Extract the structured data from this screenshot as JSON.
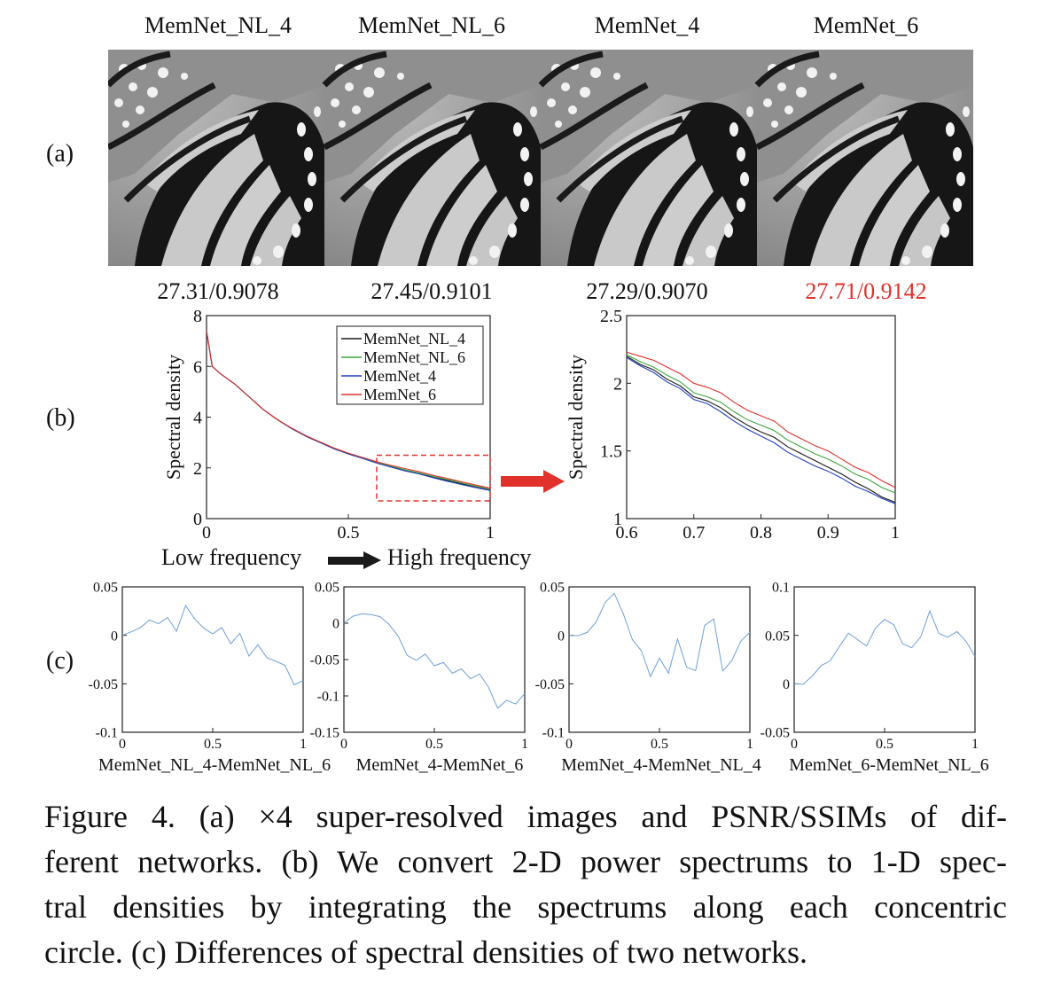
{
  "panel_labels": {
    "a": "(a)",
    "b": "(b)",
    "c": "(c)"
  },
  "row_a": {
    "columns": [
      {
        "title": "MemNet_NL_4",
        "score": "27.31/0.9078",
        "highlight": false
      },
      {
        "title": "MemNet_NL_6",
        "score": "27.45/0.9101",
        "highlight": false
      },
      {
        "title": "MemNet_4",
        "score": "27.29/0.9070",
        "highlight": false
      },
      {
        "title": "MemNet_6",
        "score": "27.71/0.9142",
        "highlight": true
      }
    ],
    "highlight_color": "#e0312b"
  },
  "row_b": {
    "freq_low": "Low frequency",
    "freq_high": "High frequency"
  },
  "row_c": {
    "xlabels": [
      "MemNet_NL_4-MemNet_NL_6",
      "MemNet_4-MemNet_6",
      "MemNet_4-MemNet_NL_4",
      "MemNet_6-MemNet_NL_6"
    ]
  },
  "caption": {
    "lines": [
      "Figure 4. (a) ×4 super-resolved images and PSNR/SSIMs of dif-",
      "ferent networks. (b) We convert 2-D power spectrums to 1-D spec-",
      "tral densities by integrating the spectrums along each concentric",
      "circle. (c) Differences of spectral densities of two networks."
    ]
  },
  "chart_data": [
    {
      "type": "line",
      "ylabel": "Spectral density",
      "xlim": [
        0,
        1
      ],
      "ylim": [
        0,
        8
      ],
      "xticks": [
        0,
        0.5,
        1
      ],
      "yticks": [
        0,
        2,
        4,
        6,
        8
      ],
      "legend_placement": "top-right",
      "x": [
        0,
        0.02,
        0.05,
        0.1,
        0.15,
        0.2,
        0.25,
        0.3,
        0.35,
        0.4,
        0.45,
        0.5,
        0.55,
        0.6,
        0.65,
        0.7,
        0.75,
        0.8,
        0.85,
        0.9,
        0.95,
        1.0
      ],
      "series": [
        {
          "name": "MemNet_NL_4",
          "color": "#1a1a1a",
          "values": [
            7.4,
            6.0,
            5.7,
            5.3,
            4.8,
            4.3,
            3.9,
            3.55,
            3.25,
            3.0,
            2.75,
            2.55,
            2.38,
            2.2,
            2.05,
            1.9,
            1.78,
            1.63,
            1.5,
            1.37,
            1.24,
            1.13
          ]
        },
        {
          "name": "MemNet_NL_6",
          "color": "#3aa83a",
          "values": [
            7.4,
            6.0,
            5.7,
            5.3,
            4.8,
            4.3,
            3.9,
            3.56,
            3.26,
            3.01,
            2.76,
            2.56,
            2.39,
            2.21,
            2.07,
            1.92,
            1.8,
            1.66,
            1.54,
            1.41,
            1.28,
            1.18
          ]
        },
        {
          "name": "MemNet_4",
          "color": "#1f3fbf",
          "values": [
            7.4,
            6.0,
            5.7,
            5.3,
            4.8,
            4.3,
            3.9,
            3.55,
            3.25,
            3.0,
            2.75,
            2.55,
            2.37,
            2.19,
            2.03,
            1.88,
            1.76,
            1.61,
            1.47,
            1.34,
            1.22,
            1.11
          ]
        },
        {
          "name": "MemNet_6",
          "color": "#e0312b",
          "values": [
            7.4,
            6.0,
            5.7,
            5.3,
            4.8,
            4.3,
            3.9,
            3.57,
            3.27,
            3.02,
            2.78,
            2.58,
            2.41,
            2.24,
            2.1,
            1.97,
            1.85,
            1.7,
            1.58,
            1.45,
            1.32,
            1.2
          ]
        }
      ],
      "zoom_box": {
        "x": [
          0.6,
          1.0
        ],
        "y": [
          0.7,
          2.5
        ]
      }
    },
    {
      "type": "line",
      "ylabel": "Spectral density",
      "xlim": [
        0.6,
        1
      ],
      "ylim": [
        1,
        2.5
      ],
      "xticks": [
        0.6,
        0.7,
        0.8,
        0.9,
        1
      ],
      "yticks": [
        1,
        1.5,
        2,
        2.5
      ],
      "x": [
        0.6,
        0.62,
        0.64,
        0.66,
        0.68,
        0.7,
        0.72,
        0.74,
        0.76,
        0.78,
        0.8,
        0.82,
        0.84,
        0.86,
        0.88,
        0.9,
        0.92,
        0.94,
        0.96,
        0.98,
        1.0
      ],
      "series": [
        {
          "name": "MemNet_NL_4",
          "color": "#1a1a1a",
          "values": [
            2.2,
            2.14,
            2.1,
            2.03,
            1.98,
            1.9,
            1.87,
            1.82,
            1.75,
            1.69,
            1.64,
            1.6,
            1.53,
            1.48,
            1.43,
            1.38,
            1.33,
            1.27,
            1.22,
            1.16,
            1.12
          ]
        },
        {
          "name": "MemNet_NL_6",
          "color": "#3aa83a",
          "values": [
            2.21,
            2.16,
            2.12,
            2.06,
            2.01,
            1.93,
            1.9,
            1.86,
            1.79,
            1.73,
            1.69,
            1.65,
            1.58,
            1.53,
            1.48,
            1.44,
            1.39,
            1.33,
            1.29,
            1.23,
            1.19
          ]
        },
        {
          "name": "MemNet_4",
          "color": "#1f3fbf",
          "values": [
            2.19,
            2.13,
            2.08,
            2.01,
            1.96,
            1.88,
            1.85,
            1.79,
            1.72,
            1.66,
            1.61,
            1.56,
            1.49,
            1.44,
            1.39,
            1.35,
            1.3,
            1.24,
            1.2,
            1.15,
            1.11
          ]
        },
        {
          "name": "MemNet_6",
          "color": "#e0312b",
          "values": [
            2.23,
            2.2,
            2.17,
            2.12,
            2.07,
            2.0,
            1.97,
            1.93,
            1.86,
            1.8,
            1.76,
            1.72,
            1.64,
            1.59,
            1.54,
            1.5,
            1.44,
            1.38,
            1.34,
            1.28,
            1.23
          ]
        }
      ]
    },
    {
      "type": "line",
      "ylim": [
        -0.1,
        0.05
      ],
      "xlim": [
        0,
        1
      ],
      "yticks": [
        -0.1,
        -0.05,
        0,
        0.05
      ],
      "xticks": [
        0,
        0.5,
        1
      ],
      "x": [
        0,
        0.05,
        0.1,
        0.15,
        0.2,
        0.25,
        0.3,
        0.35,
        0.4,
        0.45,
        0.5,
        0.55,
        0.6,
        0.65,
        0.7,
        0.75,
        0.8,
        0.85,
        0.9,
        0.95,
        1.0
      ],
      "series": [
        {
          "color": "#6f9fd8",
          "values": [
            0.0,
            0.002,
            0.005,
            0.012,
            0.008,
            0.015,
            0.002,
            0.03,
            0.018,
            0.01,
            0.005,
            0.012,
            -0.005,
            0.005,
            -0.02,
            -0.01,
            -0.025,
            -0.03,
            -0.035,
            -0.055,
            -0.05
          ]
        }
      ]
    },
    {
      "type": "line",
      "ylim": [
        -0.15,
        0.05
      ],
      "xlim": [
        0,
        1
      ],
      "yticks": [
        -0.15,
        -0.1,
        -0.05,
        0,
        0.05
      ],
      "xticks": [
        0,
        0.5,
        1
      ],
      "x": [
        0,
        0.05,
        0.1,
        0.15,
        0.2,
        0.25,
        0.3,
        0.35,
        0.4,
        0.45,
        0.5,
        0.55,
        0.6,
        0.65,
        0.7,
        0.75,
        0.8,
        0.85,
        0.9,
        0.95,
        1.0
      ],
      "series": [
        {
          "color": "#6f9fd8",
          "values": [
            0.0,
            0.008,
            0.01,
            0.008,
            0.005,
            -0.005,
            -0.02,
            -0.045,
            -0.05,
            -0.04,
            -0.055,
            -0.05,
            -0.065,
            -0.06,
            -0.075,
            -0.07,
            -0.09,
            -0.12,
            -0.11,
            -0.115,
            -0.1
          ]
        }
      ]
    },
    {
      "type": "line",
      "ylim": [
        -0.1,
        0.05
      ],
      "xlim": [
        0,
        1
      ],
      "yticks": [
        -0.1,
        -0.05,
        0,
        0.05
      ],
      "xticks": [
        0,
        0.5,
        1
      ],
      "x": [
        0,
        0.05,
        0.1,
        0.15,
        0.2,
        0.25,
        0.3,
        0.35,
        0.4,
        0.45,
        0.5,
        0.55,
        0.6,
        0.65,
        0.7,
        0.75,
        0.8,
        0.85,
        0.9,
        0.95,
        1.0
      ],
      "series": [
        {
          "color": "#6f9fd8",
          "values": [
            0.0,
            -0.002,
            0.0,
            0.01,
            0.03,
            0.04,
            0.02,
            -0.005,
            -0.015,
            -0.04,
            -0.02,
            -0.035,
            0.0,
            -0.03,
            -0.035,
            0.01,
            0.015,
            -0.04,
            -0.03,
            -0.01,
            0.0
          ]
        }
      ]
    },
    {
      "type": "line",
      "ylim": [
        -0.05,
        0.1
      ],
      "xlim": [
        0,
        1
      ],
      "yticks": [
        -0.05,
        0,
        0.05,
        0.1
      ],
      "xticks": [
        0,
        0.5,
        1
      ],
      "x": [
        0,
        0.05,
        0.1,
        0.15,
        0.2,
        0.25,
        0.3,
        0.35,
        0.4,
        0.45,
        0.5,
        0.55,
        0.6,
        0.65,
        0.7,
        0.75,
        0.8,
        0.85,
        0.9,
        0.95,
        1.0
      ],
      "series": [
        {
          "color": "#6f9fd8",
          "values": [
            0.0,
            -0.002,
            0.005,
            0.015,
            0.02,
            0.035,
            0.05,
            0.045,
            0.04,
            0.06,
            0.07,
            0.065,
            0.045,
            0.04,
            0.05,
            0.075,
            0.05,
            0.045,
            0.05,
            0.04,
            0.025
          ]
        }
      ]
    }
  ]
}
